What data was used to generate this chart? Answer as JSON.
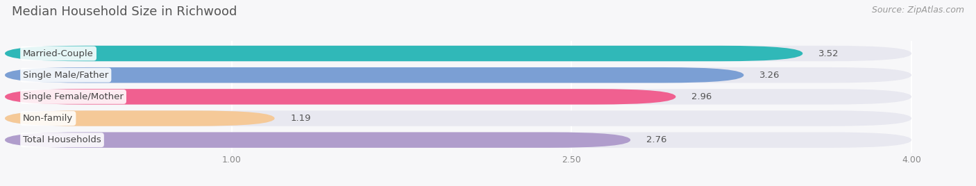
{
  "title": "Median Household Size in Richwood",
  "source": "Source: ZipAtlas.com",
  "categories": [
    "Married-Couple",
    "Single Male/Father",
    "Single Female/Mother",
    "Non-family",
    "Total Households"
  ],
  "values": [
    3.52,
    3.26,
    2.96,
    1.19,
    2.76
  ],
  "bar_colors": [
    "#30b8b8",
    "#7b9fd4",
    "#f06090",
    "#f5c998",
    "#b09dcc"
  ],
  "bar_bg_color": "#e8e8f0",
  "xlim": [
    0,
    4.22
  ],
  "xmin": 0,
  "xmax": 4.0,
  "xticks": [
    1.0,
    2.5,
    4.0
  ],
  "title_fontsize": 13,
  "source_fontsize": 9,
  "label_fontsize": 9.5,
  "value_fontsize": 9.5,
  "background_color": "#f7f7f9"
}
